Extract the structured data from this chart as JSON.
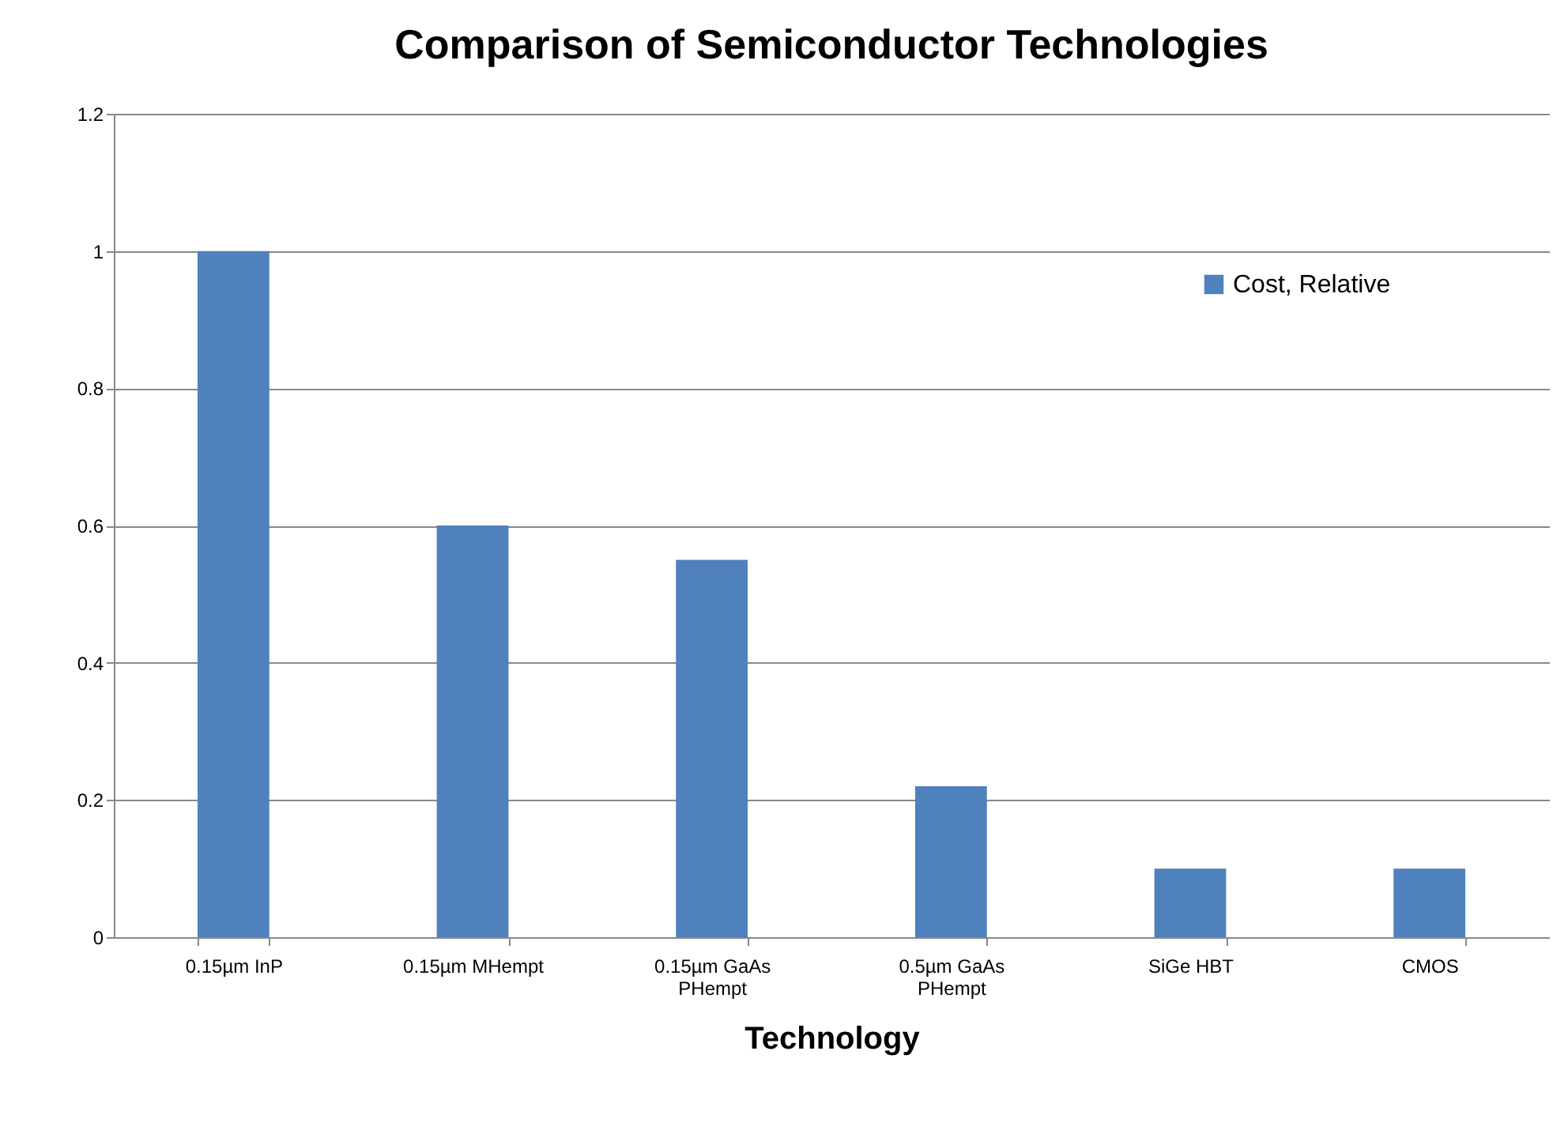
{
  "chart_data": {
    "type": "bar",
    "title": "Comparison of Semiconductor Technologies",
    "xlabel": "Technology",
    "categories": [
      "0.15µm InP",
      "0.15µm MHempt",
      "0.15µm GaAs PHempt",
      "0.5µm GaAs PHempt",
      "SiGe HBT",
      "CMOS"
    ],
    "series": [
      {
        "name": "Cost, Relative",
        "color": "#4f81bd",
        "values": [
          1.0,
          0.6,
          0.55,
          0.22,
          0.1,
          0.1
        ]
      }
    ],
    "ylim": [
      0,
      1.2
    ],
    "yticks": [
      0,
      0.2,
      0.4,
      0.6,
      0.8,
      1,
      1.2
    ],
    "grid": "y",
    "legend": "top right"
  }
}
